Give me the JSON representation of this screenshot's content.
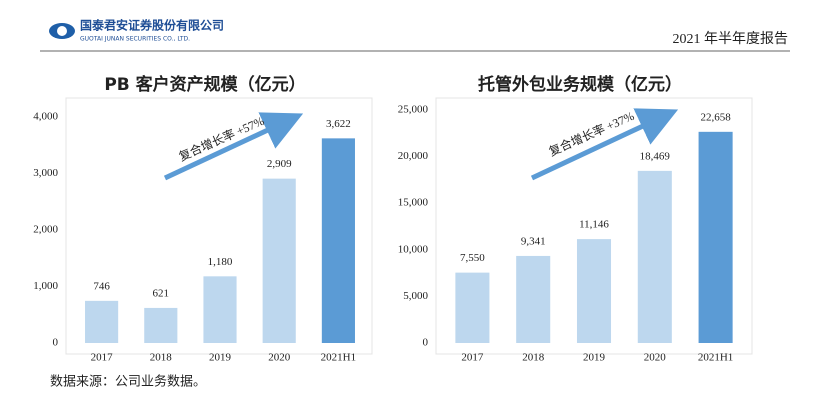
{
  "header": {
    "company": "国泰君安证券股份有限公司",
    "company_en": "GUOTAI JUNAN SECURITIES CO., LTD.",
    "report": "2021 年半年度报告"
  },
  "chart_data": [
    {
      "type": "bar",
      "title": "PB 客户资产规模（亿元）",
      "categories": [
        "2017",
        "2018",
        "2019",
        "2020",
        "2021H1"
      ],
      "values": [
        746,
        621,
        1180,
        2909,
        3622
      ],
      "value_labels": [
        "746",
        "621",
        "1,180",
        "2,909",
        "3,622"
      ],
      "colors": [
        "#bdd7ee",
        "#bdd7ee",
        "#bdd7ee",
        "#bdd7ee",
        "#5b9bd5"
      ],
      "ylim": [
        0,
        4000
      ],
      "yticks": [
        0,
        {
          "value": 1000,
          "label": "1,000"
        },
        {
          "value": 2000,
          "label": "2,000"
        },
        {
          "value": 3000,
          "label": "3,000"
        },
        {
          "value": 4000,
          "label": "4,000"
        }
      ],
      "annotation": "复合增长率 +57%"
    },
    {
      "type": "bar",
      "title": "托管外包业务规模（亿元）",
      "categories": [
        "2017",
        "2018",
        "2019",
        "2020",
        "2021H1"
      ],
      "values": [
        7550,
        9341,
        11146,
        18469,
        22658
      ],
      "value_labels": [
        "7,550",
        "9,341",
        "11,146",
        "18,469",
        "22,658"
      ],
      "colors": [
        "#bdd7ee",
        "#bdd7ee",
        "#bdd7ee",
        "#bdd7ee",
        "#5b9bd5"
      ],
      "ylim": [
        0,
        25000
      ],
      "yticks": [
        0,
        {
          "value": 5000,
          "label": "5,000"
        },
        {
          "value": 10000,
          "label": "10,000"
        },
        {
          "value": 15000,
          "label": "15,000"
        },
        {
          "value": 20000,
          "label": "20,000"
        },
        {
          "value": 25000,
          "label": "25,000"
        }
      ],
      "annotation": "复合增长率 +37%"
    }
  ],
  "source": "数据来源：公司业务数据。"
}
